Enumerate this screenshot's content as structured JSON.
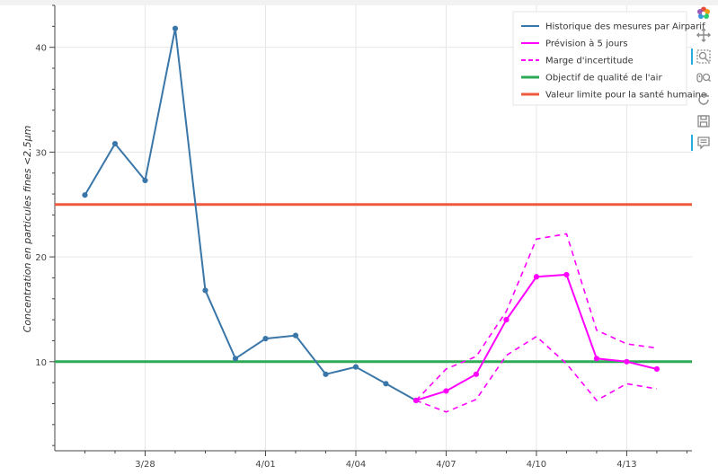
{
  "chart_data": {
    "type": "line",
    "ylabel": "Concentration en particules fines <2.5µm",
    "xlabel": "",
    "ylim": [
      1.5,
      44
    ],
    "xlim": [
      "2020-03-25",
      "2020-04-15T04:00"
    ],
    "x_ticks": [
      {
        "date": "2020-03-28",
        "label": "3/28"
      },
      {
        "date": "2020-04-01",
        "label": "4/01"
      },
      {
        "date": "2020-04-04",
        "label": "4/04"
      },
      {
        "date": "2020-04-07",
        "label": "4/07"
      },
      {
        "date": "2020-04-10",
        "label": "4/10"
      },
      {
        "date": "2020-04-13",
        "label": "4/13"
      }
    ],
    "y_ticks": [
      10,
      20,
      30,
      40
    ],
    "grid": true,
    "legend_position": "top-right",
    "series": [
      {
        "name": "Historique des mesures par Airparif",
        "color": "#3a76a8",
        "style": "solid",
        "markers": true,
        "points": [
          {
            "x": "2020-03-26",
            "y": 25.9
          },
          {
            "x": "2020-03-27",
            "y": 30.8
          },
          {
            "x": "2020-03-28",
            "y": 27.3
          },
          {
            "x": "2020-03-29",
            "y": 41.8
          },
          {
            "x": "2020-03-30",
            "y": 16.8
          },
          {
            "x": "2020-03-31",
            "y": 10.3
          },
          {
            "x": "2020-04-01",
            "y": 12.2
          },
          {
            "x": "2020-04-02",
            "y": 12.5
          },
          {
            "x": "2020-04-03",
            "y": 8.8
          },
          {
            "x": "2020-04-04",
            "y": 9.5
          },
          {
            "x": "2020-04-05",
            "y": 7.9
          },
          {
            "x": "2020-04-06",
            "y": 6.3
          }
        ]
      },
      {
        "name": "Prévision à 5 jours",
        "color": "#ff00ff",
        "style": "solid",
        "markers": true,
        "points": [
          {
            "x": "2020-04-06",
            "y": 6.3
          },
          {
            "x": "2020-04-07",
            "y": 7.2
          },
          {
            "x": "2020-04-08",
            "y": 8.8
          },
          {
            "x": "2020-04-09",
            "y": 14.0
          },
          {
            "x": "2020-04-10",
            "y": 18.1
          },
          {
            "x": "2020-04-11",
            "y": 18.3
          },
          {
            "x": "2020-04-12",
            "y": 10.3
          },
          {
            "x": "2020-04-13",
            "y": 10.0
          },
          {
            "x": "2020-04-14",
            "y": 9.3
          }
        ]
      },
      {
        "name": "Marge d'incertitude",
        "color": "#ff00ff",
        "style": "dashed",
        "markers": false,
        "upper": [
          {
            "x": "2020-04-06",
            "y": 6.3
          },
          {
            "x": "2020-04-07",
            "y": 9.3
          },
          {
            "x": "2020-04-08",
            "y": 10.5
          },
          {
            "x": "2020-04-09",
            "y": 14.8
          },
          {
            "x": "2020-04-10",
            "y": 21.7
          },
          {
            "x": "2020-04-11",
            "y": 22.2
          },
          {
            "x": "2020-04-12",
            "y": 13.0
          },
          {
            "x": "2020-04-13",
            "y": 11.7
          },
          {
            "x": "2020-04-14",
            "y": 11.3
          }
        ],
        "lower": [
          {
            "x": "2020-04-06",
            "y": 6.3
          },
          {
            "x": "2020-04-07",
            "y": 5.2
          },
          {
            "x": "2020-04-08",
            "y": 6.4
          },
          {
            "x": "2020-04-09",
            "y": 10.6
          },
          {
            "x": "2020-04-10",
            "y": 12.4
          },
          {
            "x": "2020-04-11",
            "y": 9.8
          },
          {
            "x": "2020-04-12",
            "y": 6.3
          },
          {
            "x": "2020-04-13",
            "y": 7.9
          },
          {
            "x": "2020-04-14",
            "y": 7.4
          }
        ]
      },
      {
        "name": "Objectif de qualité de l'air",
        "color": "#2eaa57",
        "style": "solid",
        "markers": false,
        "y": 10
      },
      {
        "name": "Valeur limite pour la santé humaine",
        "color": "#ee5a3c",
        "style": "solid",
        "markers": false,
        "y": 25
      }
    ]
  },
  "toolbar": {
    "tools": [
      {
        "icon": "bokeh-logo-icon",
        "active": false
      },
      {
        "icon": "pan-icon",
        "active": false
      },
      {
        "icon": "box-zoom-icon",
        "active": true
      },
      {
        "icon": "wheel-zoom-icon",
        "active": false
      },
      {
        "icon": "reset-icon",
        "active": false
      },
      {
        "icon": "save-icon",
        "active": false
      },
      {
        "icon": "hover-icon",
        "active": true
      }
    ]
  }
}
